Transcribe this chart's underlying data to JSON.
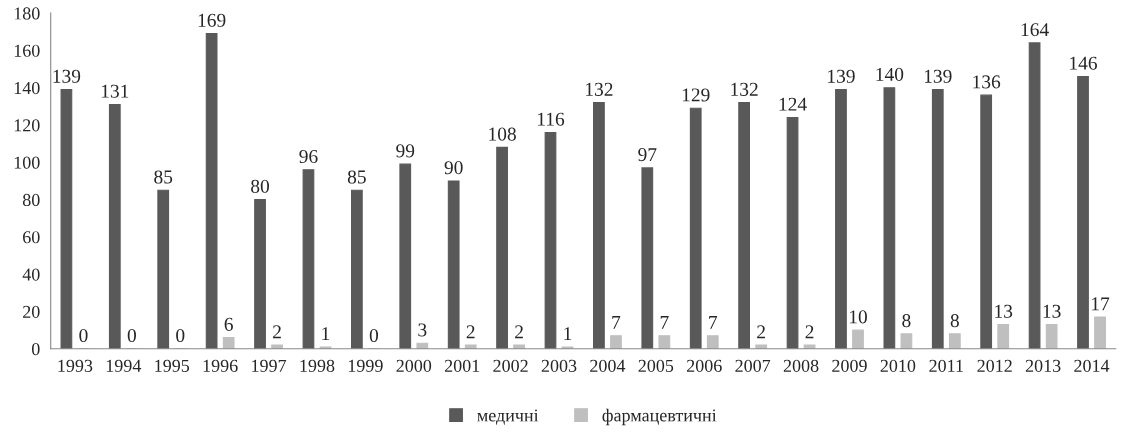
{
  "chart_data": {
    "type": "bar",
    "categories": [
      "1993",
      "1994",
      "1995",
      "1996",
      "1997",
      "1998",
      "1999",
      "2000",
      "2001",
      "2002",
      "2003",
      "2004",
      "2005",
      "2006",
      "2007",
      "2008",
      "2009",
      "2010",
      "2011",
      "2012",
      "2013",
      "2014"
    ],
    "series": [
      {
        "name": "медичні",
        "color": "#595959",
        "values": [
          139,
          131,
          85,
          169,
          80,
          96,
          85,
          99,
          90,
          108,
          116,
          132,
          97,
          129,
          132,
          124,
          139,
          140,
          139,
          136,
          164,
          146
        ]
      },
      {
        "name": "фармацевтичні",
        "color": "#bfbfbf",
        "values": [
          0,
          0,
          0,
          6,
          2,
          1,
          0,
          3,
          2,
          2,
          1,
          7,
          7,
          7,
          2,
          2,
          10,
          8,
          8,
          13,
          13,
          17
        ]
      }
    ],
    "ylim": [
      0,
      180
    ],
    "yticks": [
      0,
      20,
      40,
      60,
      80,
      100,
      120,
      140,
      160,
      180
    ],
    "grid": false,
    "legend": "bottom",
    "data_labels": true
  }
}
